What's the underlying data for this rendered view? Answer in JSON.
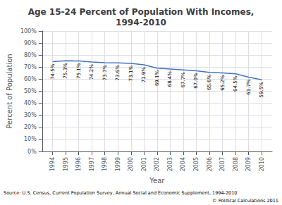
{
  "chart_data": {
    "type": "line",
    "title": "Age 15-24 Percent of Population With Incomes,\n1994-2010",
    "xlabel": "Year",
    "ylabel": "Percent of Population",
    "x": [
      1994,
      1995,
      1996,
      1997,
      1998,
      1999,
      2000,
      2001,
      2002,
      2003,
      2004,
      2005,
      2006,
      2007,
      2008,
      2009,
      2010
    ],
    "values": [
      74.5,
      75.3,
      75.1,
      74.2,
      73.7,
      73.6,
      73.1,
      71.9,
      69.1,
      68.4,
      67.7,
      67.0,
      65.6,
      65.2,
      64.5,
      61.7,
      59.5
    ],
    "value_labels": [
      "74.5%",
      "75.3%",
      "75.1%",
      "74.2%",
      "73.7%",
      "73.6%",
      "73.1%",
      "71.9%",
      "69.1%",
      "68.4%",
      "67.7%",
      "67.0%",
      "65.6%",
      "65.2%",
      "64.5%",
      "61.7%",
      "59.5%"
    ],
    "data_labels": true,
    "color": "#4472C4",
    "xlim": [
      1993.2,
      2010.8
    ],
    "xticks": [
      1994,
      1995,
      1996,
      1997,
      1998,
      1999,
      2000,
      2001,
      2002,
      2003,
      2004,
      2005,
      2006,
      2007,
      2008,
      2009,
      2010
    ],
    "ylim": [
      0,
      100
    ],
    "yticks": [
      {
        "value": 0,
        "label": "0%"
      },
      {
        "value": 10,
        "label": "10%"
      },
      {
        "value": 20,
        "label": "20%"
      },
      {
        "value": 30,
        "label": "30%"
      },
      {
        "value": 40,
        "label": "40%"
      },
      {
        "value": 50,
        "label": "50%"
      },
      {
        "value": 60,
        "label": "60%"
      },
      {
        "value": 70,
        "label": "70%"
      },
      {
        "value": 80,
        "label": "80%"
      },
      {
        "value": 90,
        "label": "90%"
      },
      {
        "value": 100,
        "label": "100%"
      }
    ],
    "grid": true,
    "annotations": [
      "Source: U.S. Census, Current Population Survey, Annual Social and Economic Supplement, 1994-2010",
      "© Political Calculations 2011"
    ]
  }
}
